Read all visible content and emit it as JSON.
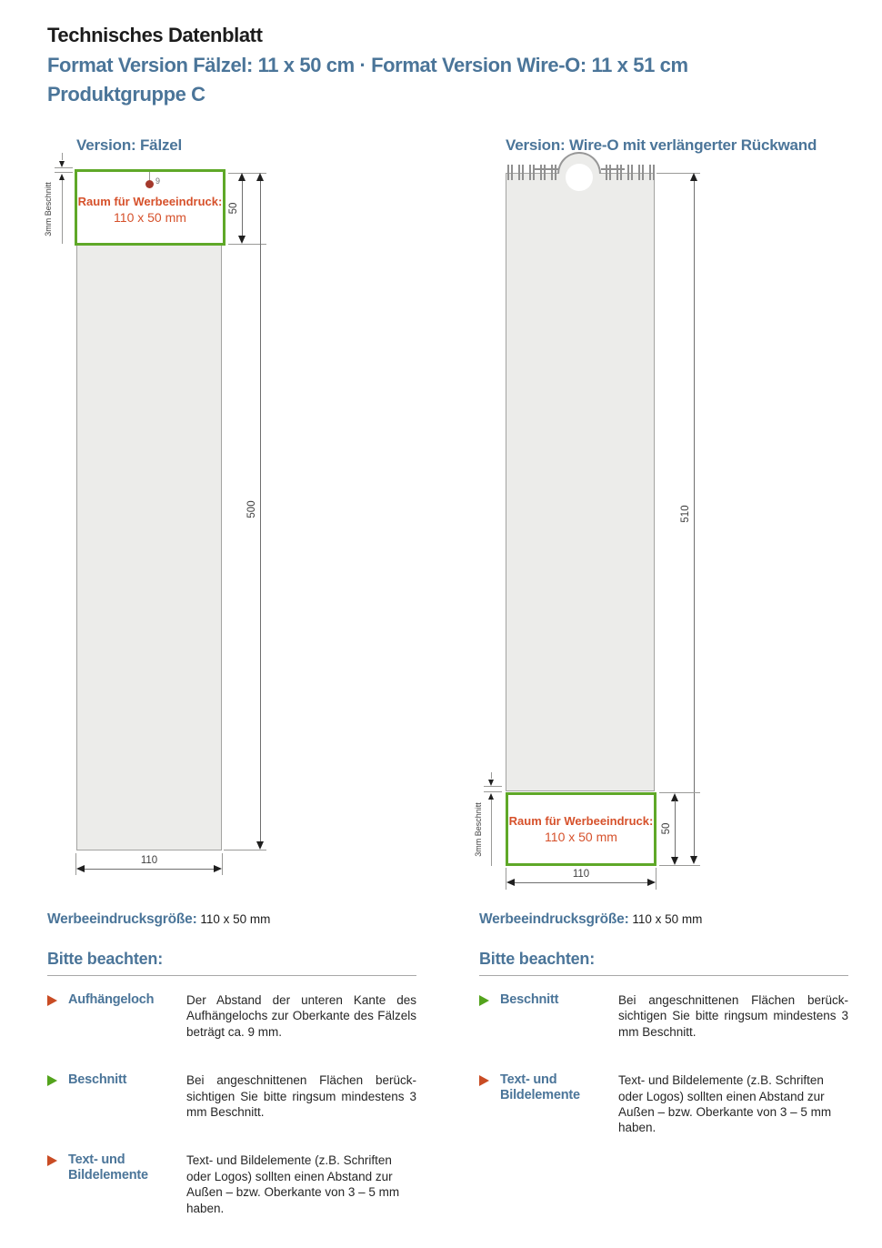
{
  "colors": {
    "blue": "#4b7599",
    "orange": "#d6512b",
    "green": "#5fa828",
    "red_arrow": "#c94c24",
    "green_arrow": "#53a31c",
    "dot": "#a4392c",
    "gray_fill": "#ececea"
  },
  "header": {
    "title": "Technisches Datenblatt",
    "format_line": "Format Version Fälzel: 11 x 50 cm · Format Version Wire-O: 11 x 51 cm",
    "product_group": "Produktgruppe C"
  },
  "diagram_left": {
    "heading": "Version: Fälzel",
    "ad_area_title": "Raum für Werbeeindruck:",
    "ad_area_size": "110 x 50 mm",
    "hole_distance": "9",
    "bleed_label": "3mm Beschnitt",
    "dim_ad_height": "50",
    "dim_total_height": "500",
    "dim_width": "110"
  },
  "diagram_right": {
    "heading": "Version: Wire-O mit verlängerter Rückwand",
    "ad_area_title": "Raum für Werbeeindruck:",
    "ad_area_size": "110 x 50 mm",
    "bleed_label": "3mm Beschnitt",
    "dim_ad_height": "50",
    "dim_total_height": "510",
    "dim_width": "110"
  },
  "notes_left": {
    "size_label": "Werbeeindrucksgröße:",
    "size_value": "110 x 50 mm",
    "heading": "Bitte beachten:",
    "items": [
      {
        "arrow": "red",
        "label": "Aufhängeloch",
        "text": "Der Abstand der unteren Kante des Aufhängelochs zur Oberkante des Fälzels beträgt ca. 9 mm."
      },
      {
        "arrow": "green",
        "label": "Beschnitt",
        "text": "Bei angeschnittenen Flächen berück­sichtigen Sie bitte ringsum minde­stens 3 mm Beschnitt."
      },
      {
        "arrow": "red",
        "label": "Text- und Bildelemente",
        "text": "Text- und Bildelemente (z.B. Schriften oder Logos) sollten einen Abstand zur Außen – bzw. Oberkante von 3 – 5 mm haben."
      }
    ]
  },
  "notes_right": {
    "size_label": "Werbeeindrucksgröße:",
    "size_value": "110 x 50 mm",
    "heading": "Bitte beachten:",
    "items": [
      {
        "arrow": "green",
        "label": "Beschnitt",
        "text": "Bei angeschnittenen Flächen berück­sichtigen Sie bitte ringsum minde­stens 3 mm Beschnitt."
      },
      {
        "arrow": "red",
        "label": "Text- und Bildelemente",
        "text": "Text- und Bildelemente (z.B. Schriften oder Logos) sollten einen Abstand zur Außen – bzw. Oberkante von 3 – 5 mm haben."
      }
    ]
  }
}
